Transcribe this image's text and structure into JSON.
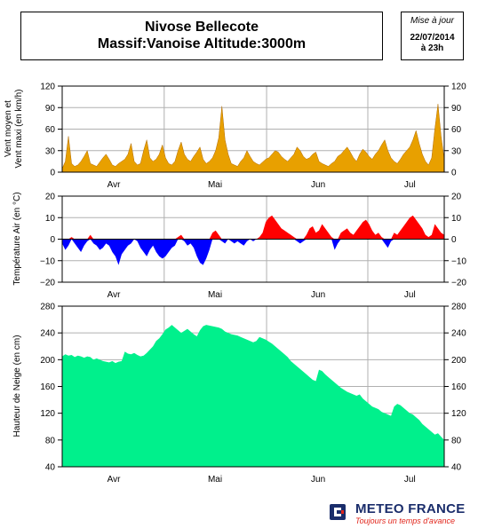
{
  "header": {
    "title_line1": "Nivose Bellecote",
    "title_line2": "Massif:Vanoise Altitude:3000m",
    "update_label": "Mise à jour",
    "update_date": "22/07/2014",
    "update_time": "à 23h"
  },
  "footer": {
    "brand": "METEO FRANCE",
    "slogan": "Toujours un temps d'avance"
  },
  "colors": {
    "wind": "#e8a000",
    "temp_pos": "#ff0000",
    "temp_neg": "#0000ff",
    "snow": "#00f08c",
    "grid": "#b0b0b0"
  },
  "chart_data": [
    {
      "id": "wind",
      "type": "area",
      "ylabel_line1": "Vent moyen et",
      "ylabel_line2": "Vent maxi (en km/h)",
      "ylim": [
        0,
        120
      ],
      "yticks": [
        0,
        30,
        60,
        90,
        120
      ],
      "xticks": [
        "Avr",
        "Mai",
        "Jun",
        "Jul"
      ],
      "series": [
        {
          "values": [
            5,
            15,
            50,
            12,
            8,
            10,
            15,
            22,
            30,
            12,
            10,
            8,
            14,
            20,
            25,
            18,
            10,
            8,
            12,
            15,
            18,
            25,
            40,
            15,
            10,
            12,
            30,
            45,
            20,
            15,
            18,
            25,
            38,
            20,
            12,
            10,
            15,
            30,
            42,
            25,
            18,
            15,
            22,
            28,
            35,
            18,
            12,
            15,
            20,
            30,
            48,
            92,
            45,
            25,
            12,
            10,
            8,
            15,
            20,
            30,
            22,
            15,
            12,
            10,
            14,
            18,
            20,
            25,
            30,
            28,
            22,
            18,
            15,
            20,
            25,
            35,
            30,
            22,
            18,
            20,
            25,
            28,
            15,
            12,
            10,
            8,
            12,
            15,
            22,
            25,
            30,
            35,
            28,
            20,
            15,
            25,
            32,
            28,
            22,
            18,
            25,
            30,
            38,
            45,
            30,
            20,
            15,
            12,
            18,
            25,
            30,
            35,
            45,
            58,
            40,
            25,
            15,
            10,
            20,
            60,
            95,
            50,
            18
          ]
        }
      ]
    },
    {
      "id": "temperature",
      "type": "area",
      "ylabel": "Température Air (en °C)",
      "ylim": [
        -20,
        20
      ],
      "yticks": [
        -20,
        -10,
        0,
        10,
        20
      ],
      "xticks": [
        "Avr",
        "Mai",
        "Jun",
        "Jul"
      ],
      "series": [
        {
          "values": [
            -2,
            -5,
            -3,
            1,
            -2,
            -4,
            -6,
            -3,
            -1,
            2,
            -2,
            -3,
            -5,
            -4,
            -2,
            -3,
            -6,
            -8,
            -12,
            -7,
            -5,
            -3,
            -2,
            0,
            -1,
            -4,
            -6,
            -8,
            -5,
            -3,
            -6,
            -8,
            -9,
            -8,
            -6,
            -4,
            -3,
            1,
            2,
            -1,
            -3,
            -2,
            -4,
            -8,
            -11,
            -12,
            -9,
            -5,
            3,
            4,
            2,
            -1,
            -2,
            0,
            -1,
            -2,
            -1,
            -2,
            -3,
            -1,
            0,
            -1,
            0,
            1,
            3,
            8,
            10,
            11,
            9,
            7,
            5,
            4,
            3,
            2,
            1,
            -1,
            -2,
            -1,
            2,
            5,
            6,
            3,
            4,
            7,
            5,
            3,
            1,
            -5,
            -2,
            3,
            4,
            5,
            3,
            2,
            4,
            6,
            8,
            9,
            7,
            4,
            2,
            3,
            1,
            -2,
            -4,
            -1,
            3,
            2,
            4,
            6,
            8,
            10,
            11,
            9,
            7,
            5,
            2,
            1,
            2,
            7,
            5,
            3,
            2
          ]
        }
      ]
    },
    {
      "id": "snow",
      "type": "area",
      "ylabel": "Hauteur de Neige (en cm)",
      "ylim": [
        40,
        280
      ],
      "yticks": [
        40,
        80,
        120,
        160,
        200,
        240,
        280
      ],
      "xticks": [
        "Avr",
        "Mai",
        "Jun",
        "Jul"
      ],
      "series": [
        {
          "values": [
            205,
            208,
            206,
            207,
            204,
            206,
            205,
            203,
            205,
            204,
            200,
            202,
            200,
            198,
            197,
            196,
            198,
            195,
            197,
            198,
            212,
            209,
            208,
            210,
            207,
            205,
            206,
            210,
            215,
            220,
            228,
            232,
            238,
            245,
            248,
            252,
            248,
            244,
            240,
            243,
            246,
            242,
            238,
            235,
            244,
            250,
            252,
            251,
            250,
            249,
            248,
            246,
            242,
            240,
            238,
            237,
            236,
            234,
            232,
            230,
            228,
            226,
            228,
            234,
            232,
            230,
            227,
            224,
            220,
            216,
            212,
            208,
            204,
            198,
            194,
            190,
            186,
            182,
            178,
            174,
            170,
            168,
            185,
            183,
            178,
            174,
            170,
            166,
            162,
            158,
            155,
            152,
            150,
            148,
            146,
            148,
            142,
            138,
            134,
            130,
            128,
            126,
            122,
            120,
            118,
            116,
            130,
            134,
            132,
            128,
            124,
            120,
            118,
            114,
            110,
            104,
            100,
            96,
            92,
            88,
            90,
            85,
            80
          ]
        }
      ]
    }
  ]
}
